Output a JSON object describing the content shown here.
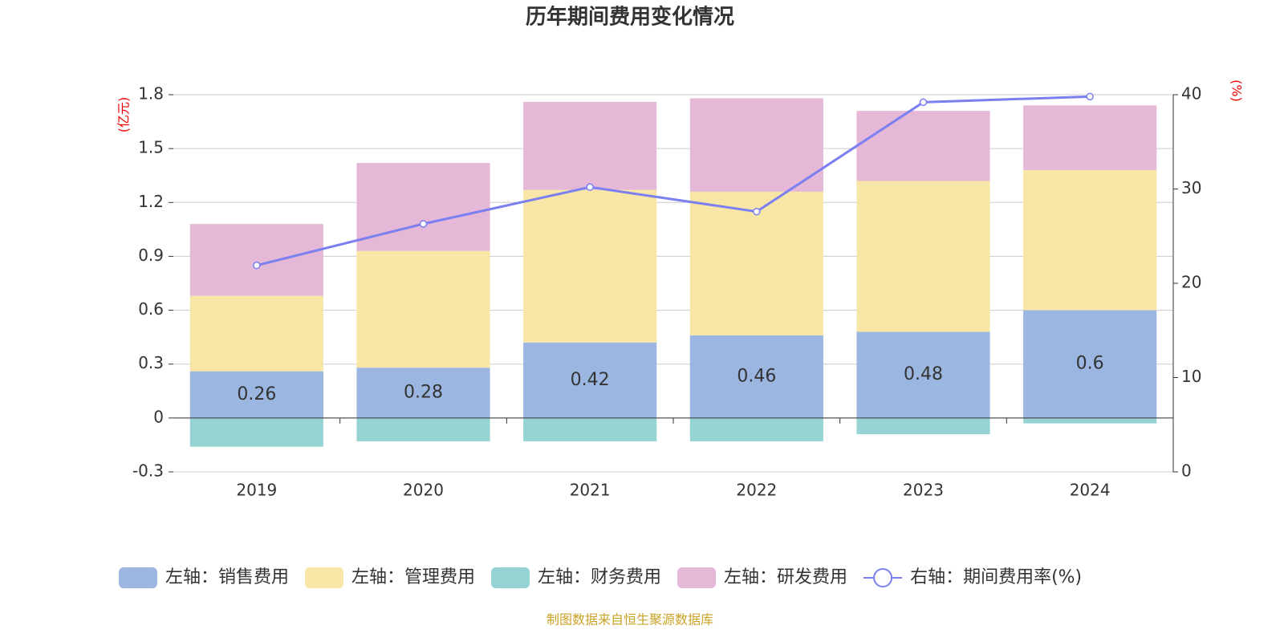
{
  "chart_data": {
    "type": "bar",
    "title": "历年期间费用变化情况",
    "y_label": "(亿元)",
    "y2_label": "(%)",
    "categories": [
      "2019",
      "2020",
      "2021",
      "2022",
      "2023",
      "2024"
    ],
    "series": [
      {
        "name": "左轴：销售费用",
        "color": "#9bb6e0",
        "values": [
          0.26,
          0.28,
          0.42,
          0.46,
          0.48,
          0.6
        ]
      },
      {
        "name": "左轴：管理费用",
        "color": "#f7e6a6",
        "values": [
          0.42,
          0.65,
          0.85,
          0.8,
          0.84,
          0.78
        ]
      },
      {
        "name": "左轴：财务费用",
        "color": "#96d3d3",
        "values": [
          -0.16,
          -0.13,
          -0.13,
          -0.13,
          -0.09,
          -0.03
        ]
      },
      {
        "name": "左轴：研发费用",
        "color": "#e6b8d8",
        "values": [
          0.4,
          0.49,
          0.49,
          0.52,
          0.39,
          0.36
        ]
      },
      {
        "name": "右轴：期间费用率(%)",
        "color": "#7b7ff0",
        "axis": "y2",
        "values": [
          21.9,
          26.3,
          30.2,
          27.6,
          39.2,
          39.8
        ]
      }
    ],
    "ylim": [
      -0.3,
      1.8
    ],
    "yticks": [
      -0.3,
      0,
      0.3,
      0.6,
      0.9,
      1.2,
      1.5,
      1.8
    ],
    "y2lim": [
      0,
      40
    ],
    "y2ticks": [
      0,
      10,
      20,
      30,
      40
    ],
    "grid": true,
    "legend": "bottom",
    "source": "制图数据来自恒生聚源数据库"
  }
}
